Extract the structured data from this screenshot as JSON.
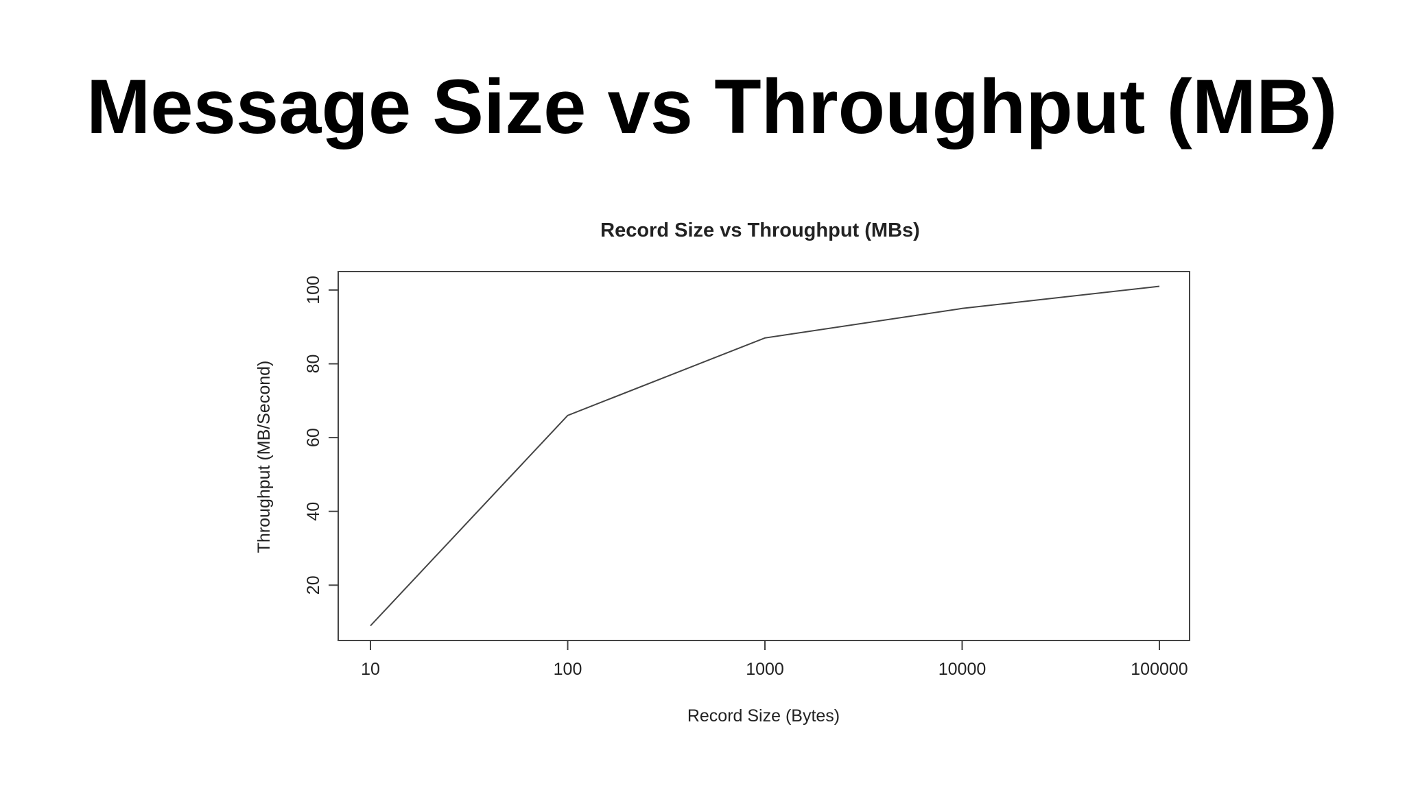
{
  "slide": {
    "title": "Message Size vs Throughput (MB)"
  },
  "chart_data": {
    "type": "line",
    "title": "Record Size vs Throughput (MBs)",
    "xlabel": "Record Size (Bytes)",
    "ylabel": "Throughput (MB/Second)",
    "x_scale": "log",
    "x": [
      10,
      100,
      1000,
      10000,
      100000
    ],
    "series": [
      {
        "values": [
          9,
          66,
          87,
          95,
          101
        ]
      }
    ],
    "x_ticks": [
      10,
      100,
      1000,
      10000,
      100000
    ],
    "x_tick_labels": [
      "10",
      "100",
      "1000",
      "10000",
      "100000"
    ],
    "y_ticks": [
      20,
      40,
      60,
      80,
      100
    ],
    "y_tick_labels": [
      "20",
      "40",
      "60",
      "80",
      "100"
    ],
    "xlim": [
      10,
      100000
    ],
    "ylim": [
      5,
      105
    ],
    "grid": false,
    "legend": "none",
    "colors": {
      "line": "#444444",
      "frame": "#444444",
      "text": "#222222"
    }
  }
}
